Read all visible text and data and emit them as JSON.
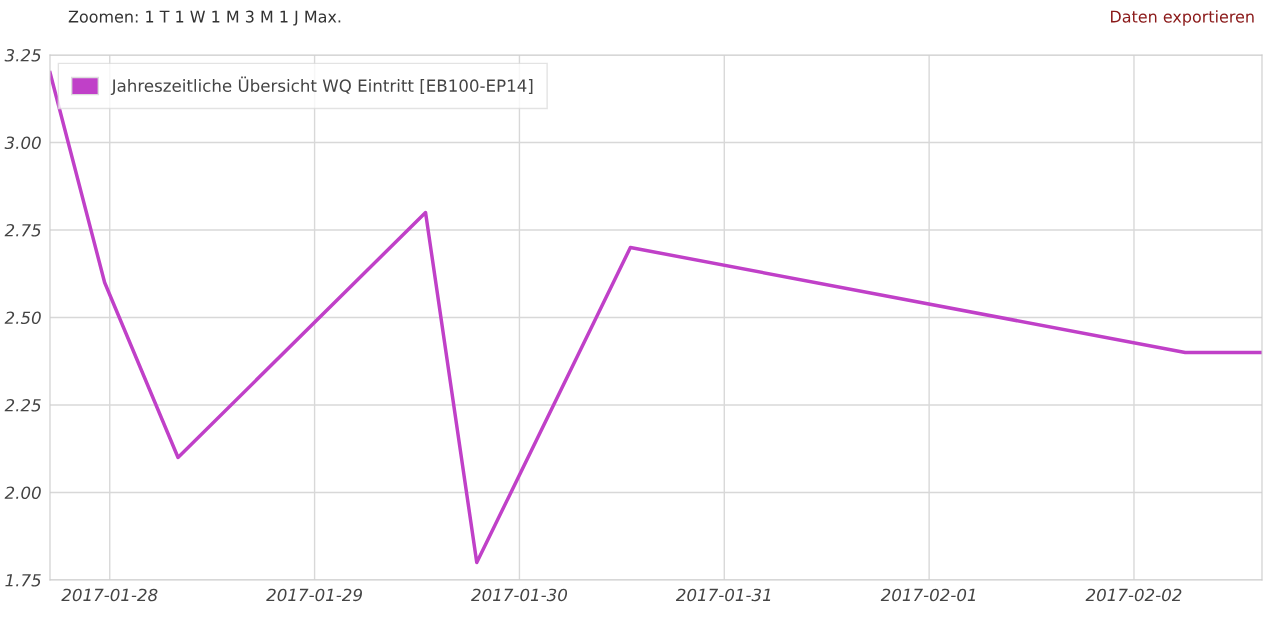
{
  "chart_data": {
    "type": "line",
    "x": [
      "2017-01-27T17:00",
      "2017-01-27T23:24",
      "2017-01-28T08:00",
      "2017-01-29T13:00",
      "2017-01-29T19:00",
      "2017-01-30T13:00",
      "2017-02-02T06:00",
      "2017-02-02T15:00"
    ],
    "series": [
      {
        "name": "Jahreszeitliche Übersicht WQ Eintritt [EB100-EP14]",
        "color": "#c040c8",
        "values": [
          3.2,
          2.6,
          2.1,
          2.8,
          1.8,
          2.7,
          2.4,
          2.4
        ]
      }
    ],
    "xlim": [
      "2017-01-27T17:00",
      "2017-02-02T15:00"
    ],
    "xticks": [
      "2017-01-28",
      "2017-01-29",
      "2017-01-30",
      "2017-01-31",
      "2017-02-01",
      "2017-02-02"
    ],
    "ylim": [
      1.75,
      3.25
    ],
    "yticks": [
      {
        "value": 1.75,
        "label": "1.75"
      },
      {
        "value": 2.0,
        "label": "2.00"
      },
      {
        "value": 2.25,
        "label": "2.25"
      },
      {
        "value": 2.5,
        "label": "2.50"
      },
      {
        "value": 2.75,
        "label": "2.75"
      },
      {
        "value": 3.0,
        "label": "3.00"
      },
      {
        "value": 3.25,
        "label": "3.25"
      }
    ],
    "annotations": [
      "Zoomen: 1 T 1 W 1 M 3 M 1 J Max.",
      "Daten exportieren"
    ],
    "grid": true,
    "legend": "top left",
    "marker": "none",
    "line_style": "solid"
  }
}
